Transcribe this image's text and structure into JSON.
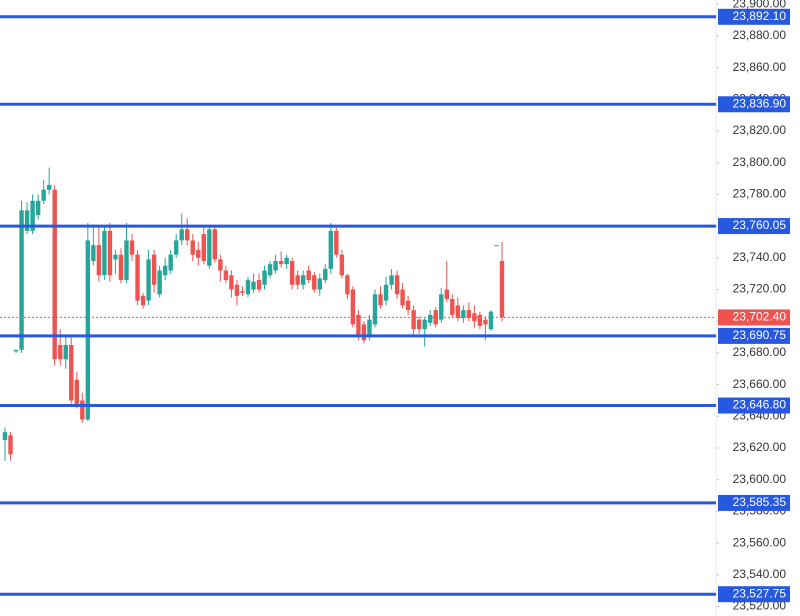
{
  "chart_data": {
    "type": "candlestick",
    "ylim": [
      23514,
      23902.7
    ],
    "yticks": [
      {
        "value": 23520,
        "label": "23,520.00"
      },
      {
        "value": 23540,
        "label": "23,540.00"
      },
      {
        "value": 23560,
        "label": "23,560.00"
      },
      {
        "value": 23580,
        "label": "23,580.00"
      },
      {
        "value": 23600,
        "label": "23,600.00"
      },
      {
        "value": 23620,
        "label": "23,620.00"
      },
      {
        "value": 23640,
        "label": "23,640.00"
      },
      {
        "value": 23660,
        "label": "23,660.00"
      },
      {
        "value": 23680,
        "label": "23,680.00"
      },
      {
        "value": 23700,
        "label": "23,700.00"
      },
      {
        "value": 23720,
        "label": "23,720.00"
      },
      {
        "value": 23740,
        "label": "23,740.00"
      },
      {
        "value": 23760,
        "label": "23,760.00"
      },
      {
        "value": 23780,
        "label": "23,780.00"
      },
      {
        "value": 23800,
        "label": "23,800.00"
      },
      {
        "value": 23820,
        "label": "23,820.00"
      },
      {
        "value": 23840,
        "label": "23,840.00"
      },
      {
        "value": 23860,
        "label": "23,860.00"
      },
      {
        "value": 23880,
        "label": "23,880.00"
      },
      {
        "value": 23900,
        "label": "23,900.00"
      }
    ],
    "up_color": "#26a69a",
    "down_color": "#ef5350",
    "level_color": "#2658e0",
    "levels": [
      {
        "value": 23892.1,
        "label": "23,892.10"
      },
      {
        "value": 23836.9,
        "label": "23,836.90"
      },
      {
        "value": 23760.05,
        "label": "23,760.05"
      },
      {
        "value": 23690.75,
        "label": "23,690.75"
      },
      {
        "value": 23646.8,
        "label": "23,646.80"
      },
      {
        "value": 23585.35,
        "label": "23,585.35"
      },
      {
        "value": 23527.75,
        "label": "23,527.75"
      }
    ],
    "last_price": {
      "value": 23702.4,
      "label": "23,702.40"
    },
    "open": [
      23625,
      23628,
      23681,
      23682,
      23757,
      23757,
      23767,
      23776,
      23783,
      23783,
      23685,
      23676,
      23685,
      23663,
      23650,
      23638,
      23738,
      23748,
      23729,
      23757,
      23739,
      23742,
      23726,
      23751,
      23742,
      23716,
      23713,
      23742,
      23717,
      23729,
      23732,
      23742,
      23751,
      23758,
      23751,
      23745,
      23755,
      23735,
      23758,
      23739,
      23732,
      23729,
      23723,
      23719,
      23717,
      23720,
      23726,
      23723,
      23729,
      23732,
      23738,
      23736,
      23738,
      23729,
      23723,
      23732,
      23729,
      23720,
      23726,
      23733,
      23757,
      23742,
      23729,
      23720,
      23704,
      23698,
      23691,
      23698,
      23717,
      23713,
      23723,
      23729,
      23720,
      23713,
      23707,
      23701,
      23695,
      23699,
      23707,
      23701,
      23720,
      23714,
      23710,
      23702,
      23707,
      23705,
      23704,
      23701,
      23695,
      23748,
      23738
    ],
    "high": [
      23633,
      23630,
      23682,
      23776,
      23775,
      23780,
      23780,
      23789,
      23797,
      23786,
      23695,
      23690,
      23690,
      23668,
      23655,
      23762,
      23760,
      23760,
      23760,
      23762,
      23745,
      23746,
      23762,
      23755,
      23745,
      23718,
      23745,
      23745,
      23735,
      23740,
      23745,
      23755,
      23768,
      23765,
      23755,
      23750,
      23760,
      23760,
      23760,
      23742,
      23735,
      23732,
      23726,
      23722,
      23728,
      23730,
      23730,
      23735,
      23738,
      23742,
      23744,
      23742,
      23740,
      23732,
      23732,
      23735,
      23731,
      23730,
      23736,
      23762,
      23760,
      23745,
      23730,
      23722,
      23707,
      23700,
      23704,
      23720,
      23722,
      23728,
      23733,
      23732,
      23724,
      23716,
      23710,
      23703,
      23702,
      23707,
      23709,
      23721,
      23738,
      23717,
      23715,
      23710,
      23712,
      23710,
      23706,
      23703,
      23707,
      23748,
      23750
    ],
    "low": [
      23612,
      23612,
      23680,
      23680,
      23755,
      23755,
      23764,
      23774,
      23780,
      23672,
      23672,
      23670,
      23648,
      23645,
      23636,
      23637,
      23735,
      23725,
      23726,
      23725,
      23730,
      23724,
      23724,
      23738,
      23710,
      23708,
      23710,
      23718,
      23715,
      23726,
      23730,
      23740,
      23748,
      23748,
      23738,
      23735,
      23736,
      23733,
      23737,
      23725,
      23724,
      23715,
      23710,
      23716,
      23715,
      23718,
      23718,
      23720,
      23727,
      23730,
      23734,
      23733,
      23720,
      23720,
      23720,
      23724,
      23718,
      23716,
      23724,
      23730,
      23740,
      23727,
      23714,
      23696,
      23688,
      23686,
      23688,
      23696,
      23708,
      23710,
      23720,
      23714,
      23708,
      23704,
      23690,
      23692,
      23684,
      23697,
      23696,
      23699,
      23712,
      23702,
      23700,
      23699,
      23700,
      23696,
      23695,
      23688,
      23694,
      23748,
      23700
    ],
    "close": [
      23630,
      23616,
      23682,
      23770,
      23770,
      23776,
      23776,
      23783,
      23786,
      23676,
      23676,
      23685,
      23650,
      23647,
      23638,
      23751,
      23748,
      23729,
      23757,
      23729,
      23742,
      23726,
      23751,
      23742,
      23713,
      23710,
      23739,
      23723,
      23732,
      23735,
      23742,
      23751,
      23758,
      23751,
      23742,
      23740,
      23738,
      23758,
      23739,
      23732,
      23726,
      23720,
      23716,
      23718,
      23726,
      23725,
      23720,
      23732,
      23736,
      23738,
      23736,
      23740,
      23723,
      23723,
      23729,
      23726,
      23720,
      23727,
      23733,
      23757,
      23742,
      23729,
      23717,
      23698,
      23691,
      23688,
      23701,
      23717,
      23710,
      23723,
      23729,
      23717,
      23710,
      23707,
      23695,
      23695,
      23701,
      23704,
      23698,
      23717,
      23714,
      23704,
      23702,
      23707,
      23702,
      23700,
      23697,
      23698,
      23706,
      23748,
      23702.4
    ]
  }
}
